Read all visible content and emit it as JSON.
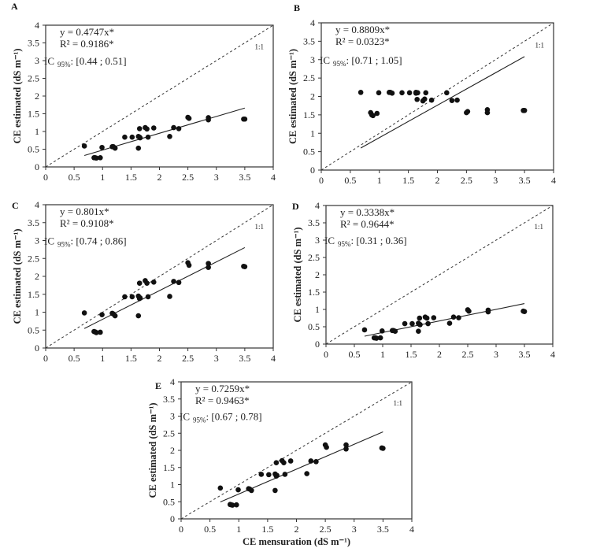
{
  "chart_data": [
    {
      "type": "scatter",
      "panel": "A",
      "xlabel": "",
      "ylabel": "CE estimated (dS m⁻¹)",
      "xlim": [
        0,
        4
      ],
      "ylim": [
        0,
        4
      ],
      "grid": false,
      "xticks": [
        "0",
        "0.5",
        "1",
        "1.5",
        "2",
        "2.5",
        "3",
        "3.5",
        "4"
      ],
      "yticks": [
        "0",
        "0.5",
        "1",
        "1.5",
        "2",
        "2.5",
        "3",
        "3.5",
        "4"
      ],
      "equation": "y = 0.4747x*",
      "r2": "R² = 0.9186*",
      "ic_label": "IC",
      "ic_sub": "95%",
      "ic_value": ": [0.44 ; 0.51]",
      "identity_label": "1:1",
      "slope": 0.4747,
      "fit_x_range": [
        0.68,
        3.5
      ],
      "x": [
        0.68,
        0.85,
        0.87,
        0.89,
        0.96,
        0.99,
        1.17,
        1.19,
        1.22,
        1.39,
        1.52,
        1.63,
        1.63,
        1.65,
        1.65,
        1.66,
        1.75,
        1.78,
        1.8,
        1.9,
        2.18,
        2.25,
        2.34,
        2.5,
        2.52,
        2.86,
        2.86,
        3.48,
        3.5
      ],
      "y": [
        0.59,
        0.26,
        0.26,
        0.25,
        0.26,
        0.55,
        0.57,
        0.57,
        0.53,
        0.84,
        0.84,
        0.53,
        0.86,
        0.84,
        1.08,
        0.82,
        1.11,
        1.07,
        0.84,
        1.1,
        0.86,
        1.11,
        1.08,
        1.4,
        1.37,
        1.39,
        1.33,
        1.35,
        1.35
      ]
    },
    {
      "type": "scatter",
      "panel": "B",
      "xlabel": "",
      "ylabel": "CE estimated (dS m⁻¹)",
      "xlim": [
        0,
        4
      ],
      "ylim": [
        0,
        4
      ],
      "grid": false,
      "xticks": [
        "0",
        "0.5",
        "1",
        "1.5",
        "2",
        "2.5",
        "3",
        "3.5",
        "4"
      ],
      "yticks": [
        "0",
        "0.5",
        "1",
        "1.5",
        "2",
        "2.5",
        "3",
        "3.5",
        "4"
      ],
      "equation": "y = 0.8809x*",
      "r2": "R² = 0.0323*",
      "ic_label": "IC",
      "ic_sub": "95%",
      "ic_value": ": [0.71 ; 1.05]",
      "identity_label": "1:1",
      "slope": 0.8809,
      "fit_x_range": [
        0.68,
        3.5
      ],
      "x": [
        0.68,
        0.85,
        0.87,
        0.89,
        0.96,
        0.99,
        1.17,
        1.19,
        1.22,
        1.39,
        1.52,
        1.63,
        1.63,
        1.65,
        1.65,
        1.66,
        1.75,
        1.78,
        1.8,
        1.9,
        2.16,
        2.25,
        2.34,
        2.5,
        2.52,
        2.86,
        2.86,
        3.48,
        3.5
      ],
      "y": [
        2.11,
        1.56,
        1.5,
        1.48,
        1.54,
        2.1,
        2.11,
        2.11,
        2.09,
        2.1,
        2.1,
        2.09,
        2.11,
        1.92,
        2.1,
        2.1,
        1.88,
        1.93,
        2.1,
        1.9,
        2.1,
        1.89,
        1.9,
        1.56,
        1.59,
        1.64,
        1.56,
        1.62,
        1.62
      ]
    },
    {
      "type": "scatter",
      "panel": "C",
      "xlabel": "",
      "ylabel": "CE estimated (dS m⁻¹)",
      "xlim": [
        0,
        4
      ],
      "ylim": [
        0,
        4
      ],
      "grid": false,
      "xticks": [
        "0",
        "0.5",
        "1",
        "1.5",
        "2",
        "2.5",
        "3",
        "3.5",
        "4"
      ],
      "yticks": [
        "0",
        "0.5",
        "1",
        "1.5",
        "2",
        "2.5",
        "3",
        "3.5",
        "4"
      ],
      "equation": "y = 0.801x*",
      "r2": "R² = 0.9108*",
      "ic_label": "IC",
      "ic_sub": "95%",
      "ic_value": ": [0.74 ; 0.86]",
      "identity_label": "1:1",
      "slope": 0.801,
      "fit_x_range": [
        0.68,
        3.5
      ],
      "x": [
        0.68,
        0.85,
        0.87,
        0.89,
        0.96,
        0.99,
        1.17,
        1.19,
        1.22,
        1.39,
        1.52,
        1.63,
        1.63,
        1.65,
        1.65,
        1.66,
        1.75,
        1.78,
        1.8,
        1.9,
        2.18,
        2.25,
        2.34,
        2.5,
        2.52,
        2.86,
        2.86,
        3.48,
        3.5
      ],
      "y": [
        0.98,
        0.46,
        0.45,
        0.43,
        0.44,
        0.93,
        0.97,
        0.95,
        0.9,
        1.43,
        1.43,
        0.9,
        1.45,
        1.38,
        1.81,
        1.4,
        1.88,
        1.81,
        1.43,
        1.84,
        1.44,
        1.86,
        1.83,
        2.38,
        2.31,
        2.36,
        2.25,
        2.28,
        2.27
      ]
    },
    {
      "type": "scatter",
      "panel": "D",
      "xlabel": "",
      "ylabel": "CE estimated (dS m⁻¹)",
      "xlim": [
        0,
        4
      ],
      "ylim": [
        0,
        4
      ],
      "grid": false,
      "xticks": [
        "0",
        "0.5",
        "1",
        "1.5",
        "2",
        "2.5",
        "3",
        "3.5",
        "4"
      ],
      "yticks": [
        "0",
        "0.5",
        "1",
        "1.5",
        "2",
        "2.5",
        "3",
        "3.5",
        "4"
      ],
      "equation": "y = 0.3338x*",
      "r2": "R² = 0.9644*",
      "ic_label": "IC",
      "ic_sub": "95%",
      "ic_value": ": [0.31 ; 0.36]",
      "identity_label": "1:1",
      "slope": 0.3338,
      "fit_x_range": [
        0.68,
        3.5
      ],
      "x": [
        0.68,
        0.85,
        0.87,
        0.89,
        0.96,
        0.99,
        1.17,
        1.19,
        1.22,
        1.39,
        1.52,
        1.63,
        1.63,
        1.65,
        1.65,
        1.66,
        1.75,
        1.78,
        1.8,
        1.9,
        2.18,
        2.25,
        2.34,
        2.5,
        2.52,
        2.86,
        2.86,
        3.48,
        3.5
      ],
      "y": [
        0.41,
        0.18,
        0.18,
        0.17,
        0.18,
        0.38,
        0.39,
        0.39,
        0.37,
        0.59,
        0.59,
        0.37,
        0.6,
        0.57,
        0.75,
        0.56,
        0.78,
        0.75,
        0.59,
        0.76,
        0.6,
        0.78,
        0.76,
        0.99,
        0.95,
        0.98,
        0.93,
        0.95,
        0.94
      ]
    },
    {
      "type": "scatter",
      "panel": "E",
      "xlabel": "CE mensuration (dS m⁻¹)",
      "ylabel": "CE estimated (dS m⁻¹)",
      "xlim": [
        0,
        4
      ],
      "ylim": [
        0,
        4
      ],
      "grid": false,
      "xticks": [
        "0",
        "0.5",
        "1",
        "1.5",
        "2",
        "2.5",
        "3",
        "3.5",
        "4"
      ],
      "yticks": [
        "0",
        "0.5",
        "1",
        "1.5",
        "2",
        "2.5",
        "3",
        "3.5",
        "4"
      ],
      "equation": "y = 0.7259x*",
      "r2": "R² = 0.9463*",
      "ic_label": "IC",
      "ic_sub": "95%",
      "ic_value": ": [0.67 ; 0.78]",
      "identity_label": "1:1",
      "slope": 0.7259,
      "fit_x_range": [
        0.68,
        3.5
      ],
      "x": [
        0.68,
        0.85,
        0.87,
        0.89,
        0.96,
        0.99,
        1.17,
        1.19,
        1.22,
        1.39,
        1.52,
        1.63,
        1.63,
        1.65,
        1.65,
        1.66,
        1.75,
        1.78,
        1.8,
        1.9,
        2.18,
        2.25,
        2.34,
        2.5,
        2.52,
        2.86,
        2.86,
        3.48,
        3.5
      ],
      "y": [
        0.9,
        0.42,
        0.41,
        0.4,
        0.41,
        0.85,
        0.88,
        0.87,
        0.83,
        1.3,
        1.29,
        0.83,
        1.31,
        1.25,
        1.64,
        1.27,
        1.7,
        1.64,
        1.3,
        1.69,
        1.32,
        1.69,
        1.67,
        2.16,
        2.09,
        2.16,
        2.04,
        2.07,
        2.06
      ]
    }
  ]
}
